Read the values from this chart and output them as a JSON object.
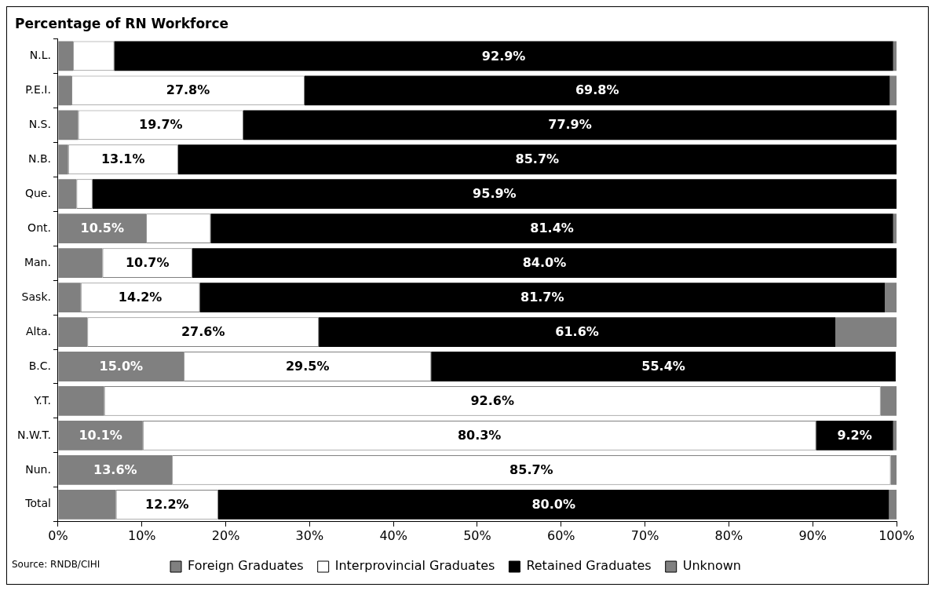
{
  "chart_data": {
    "type": "bar",
    "orientation": "horizontal",
    "stacked": true,
    "title": "Percentage of RN Workforce",
    "categories": [
      "N.L.",
      "P.E.I.",
      "N.S.",
      "N.B.",
      "Que.",
      "Ont.",
      "Man.",
      "Sask.",
      "Alta.",
      "B.C.",
      "Y.T.",
      "N.W.T.",
      "Nun.",
      "Total"
    ],
    "series": [
      {
        "name": "Foreign Graduates",
        "color": "#808080",
        "values": [
          1.8,
          1.6,
          2.4,
          1.2,
          2.2,
          10.5,
          5.3,
          2.7,
          3.5,
          15.0,
          5.5,
          10.1,
          13.6,
          6.9
        ],
        "value_labels": [
          null,
          null,
          null,
          null,
          null,
          "10.5%",
          null,
          null,
          null,
          "15.0%",
          null,
          "10.1%",
          "13.6%",
          null
        ]
      },
      {
        "name": "Interprovincial Graduates",
        "color": "#ffffff",
        "values": [
          4.9,
          27.8,
          19.7,
          13.1,
          1.9,
          7.7,
          10.7,
          14.2,
          27.6,
          29.5,
          92.6,
          80.3,
          85.7,
          12.2
        ],
        "value_labels": [
          null,
          "27.8%",
          "19.7%",
          "13.1%",
          null,
          null,
          "10.7%",
          "14.2%",
          "27.6%",
          "29.5%",
          "92.6%",
          "80.3%",
          "85.7%",
          "12.2%"
        ]
      },
      {
        "name": "Retained Graduates",
        "color": "#000000",
        "values": [
          92.9,
          69.8,
          77.9,
          85.7,
          95.9,
          81.4,
          84.0,
          81.7,
          61.6,
          55.4,
          0,
          9.2,
          0,
          80.0
        ],
        "value_labels": [
          "92.9%",
          "69.8%",
          "77.9%",
          "85.7%",
          "95.9%",
          "81.4%",
          "84.0%",
          "81.7%",
          "61.6%",
          "55.4%",
          null,
          "9.2%",
          null,
          "80.0%"
        ]
      },
      {
        "name": "Unknown",
        "color": "#808080",
        "values": [
          0.4,
          0.8,
          0,
          0,
          0,
          0.4,
          0,
          1.4,
          7.3,
          0,
          1.9,
          0.4,
          0.7,
          0.9
        ]
      }
    ],
    "xlim": [
      0,
      100
    ],
    "xticks": [
      {
        "value": 0,
        "label": "0%"
      },
      {
        "value": 10,
        "label": "10%"
      },
      {
        "value": 20,
        "label": "20%"
      },
      {
        "value": 30,
        "label": "30%"
      },
      {
        "value": 40,
        "label": "40%"
      },
      {
        "value": 50,
        "label": "50%"
      },
      {
        "value": 60,
        "label": "60%"
      },
      {
        "value": 70,
        "label": "70%"
      },
      {
        "value": 80,
        "label": "80%"
      },
      {
        "value": 90,
        "label": "90%"
      },
      {
        "value": 100,
        "label": "100%"
      }
    ],
    "legend": "bottom",
    "annotations": [
      "Source: RNDB/CIHI"
    ]
  }
}
